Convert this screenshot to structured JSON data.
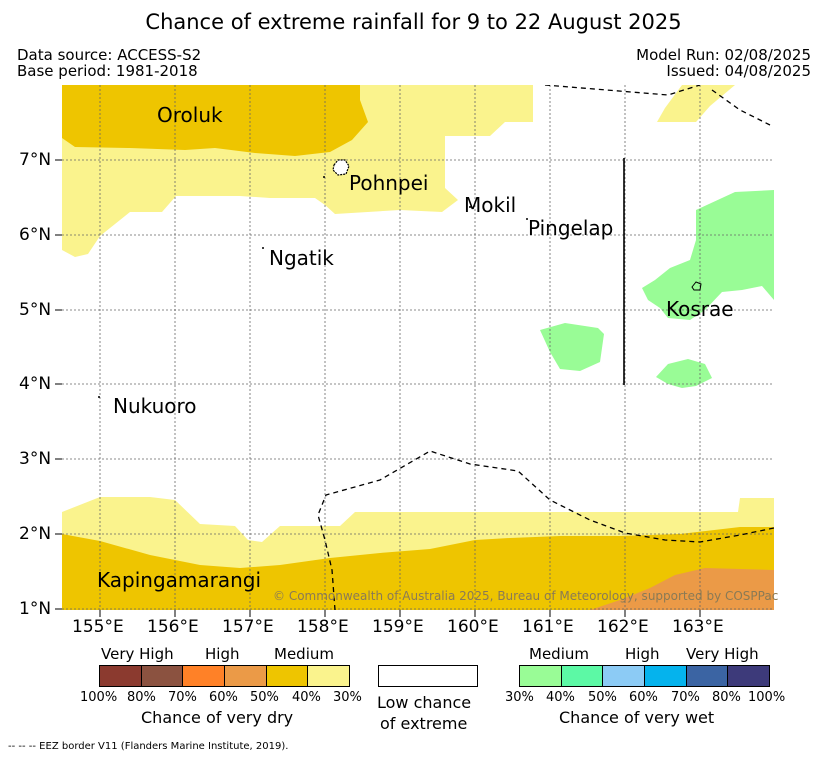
{
  "title": "Chance of extreme rainfall for 9 to 22 August 2025",
  "header": {
    "data_source": "Data source: ACCESS-S2",
    "base_period": "Base period: 1981-2018",
    "model_run": "Model Run: 02/08/2025",
    "issued": "Issued: 04/08/2025"
  },
  "map": {
    "places": {
      "oroluk": "Oroluk",
      "pohnpei": "Pohnpei",
      "mokil": "Mokil",
      "pingelap": "Pingelap",
      "ngatik": "Ngatik",
      "kosrae": "Kosrae",
      "nukuoro": "Nukuoro",
      "kapingamarangi": "Kapingamarangi"
    },
    "lat_ticks": [
      "7°N",
      "6°N",
      "5°N",
      "4°N",
      "3°N",
      "2°N",
      "1°N"
    ],
    "lon_ticks": [
      "155°E",
      "156°E",
      "157°E",
      "158°E",
      "159°E",
      "160°E",
      "161°E",
      "162°E",
      "163°E"
    ],
    "copyright": "© Commonwealth of Australia 2025, Bureau of Meteorology, supported by COSPPac"
  },
  "legend": {
    "dry": {
      "labels": [
        "Very High",
        "High",
        "Medium"
      ],
      "percents": [
        "100%",
        "80%",
        "70%",
        "60%",
        "50%",
        "40%",
        "30%"
      ],
      "colors": [
        "#8b3a2f",
        "#8b5240",
        "#ff8127",
        "#eb9a47",
        "#eec500",
        "#faf38d"
      ],
      "title": "Chance of very dry"
    },
    "neutral": {
      "title_line1": "Low chance",
      "title_line2": "of extreme"
    },
    "wet": {
      "labels": [
        "Medium",
        "High",
        "Very High"
      ],
      "percents": [
        "30%",
        "40%",
        "50%",
        "60%",
        "70%",
        "80%",
        "100%"
      ],
      "colors": [
        "#99fc96",
        "#5cf9a5",
        "#8ccbf5",
        "#05b3ed",
        "#3b64a3",
        "#3d3a7a"
      ],
      "title": "Chance of very wet"
    }
  },
  "footnote": "-- -- -- EEZ border V11 (Flanders Marine Institute, 2019)."
}
